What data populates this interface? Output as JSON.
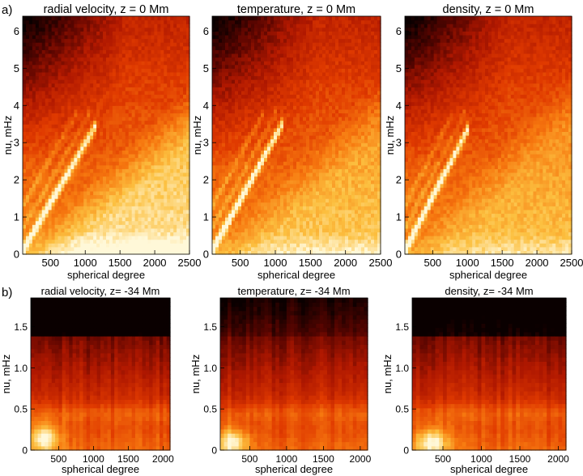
{
  "figure": {
    "row_labels": [
      "a)",
      "b)"
    ]
  },
  "chart_data": [
    {
      "type": "heatmap",
      "row": 0,
      "col": 0,
      "title": "radial velocity, z = 0 Mm",
      "xlabel": "spherical degree",
      "ylabel": "nu, mHz",
      "xlim": [
        100,
        2500
      ],
      "ylim": [
        0,
        6.4
      ],
      "xticks": [
        500,
        1000,
        1500,
        2000,
        2500
      ],
      "yticks": [
        0,
        1,
        2,
        3,
        4,
        5,
        6
      ],
      "ridge_slope": 0.0032,
      "bright_floor": 1.0,
      "colormap": [
        "#0a0000",
        "#5a0500",
        "#b01800",
        "#e03a00",
        "#f77a10",
        "#fcc040",
        "#fff8d8"
      ]
    },
    {
      "type": "heatmap",
      "row": 0,
      "col": 1,
      "title": "temperature, z = 0 Mm",
      "xlabel": "spherical degree",
      "ylabel": "nu, mHz",
      "xlim": [
        100,
        2500
      ],
      "ylim": [
        0,
        6.4
      ],
      "xticks": [
        500,
        1000,
        1500,
        2000,
        2500
      ],
      "yticks": [
        0,
        1,
        2,
        3,
        4,
        5,
        6
      ],
      "ridge_slope": 0.0034,
      "bright_floor": 0.7,
      "colormap": [
        "#0a0000",
        "#5a0500",
        "#b01800",
        "#e03a00",
        "#f77a10",
        "#fcc040",
        "#fff8d8"
      ]
    },
    {
      "type": "heatmap",
      "row": 0,
      "col": 2,
      "title": "density, z = 0 Mm",
      "xlabel": "spherical degree",
      "ylabel": "nu, mHz",
      "xlim": [
        100,
        2500
      ],
      "ylim": [
        0,
        6.4
      ],
      "xticks": [
        500,
        1000,
        1500,
        2000,
        2500
      ],
      "yticks": [
        0,
        1,
        2,
        3,
        4,
        5,
        6
      ],
      "ridge_slope": 0.0036,
      "bright_floor": 0.6,
      "colormap": [
        "#0a0000",
        "#5a0500",
        "#b01800",
        "#e03a00",
        "#f77a10",
        "#fcc040",
        "#fff8d8"
      ]
    },
    {
      "type": "heatmap",
      "row": 1,
      "col": 0,
      "title": "radial velocity, z= -34 Mm",
      "xlabel": "spherical degree",
      "ylabel": "nu, mHz",
      "xlim": [
        100,
        2100
      ],
      "ylim": [
        0,
        1.85
      ],
      "xticks": [
        500,
        1000,
        1500,
        2000
      ],
      "yticks": [
        0,
        0.5,
        1.0,
        1.5
      ],
      "ytick_labels": [
        "0",
        "0.5",
        "1.0",
        "1.5"
      ],
      "blob_center": [
        300,
        0.15
      ],
      "darkness_top": 0.25,
      "colormap": [
        "#0a0000",
        "#5a0500",
        "#b01800",
        "#e03a00",
        "#f77a10",
        "#fcc040",
        "#fff8d8"
      ]
    },
    {
      "type": "heatmap",
      "row": 1,
      "col": 1,
      "title": "temperature, z= -34 Mm",
      "xlabel": "spherical degree",
      "ylabel": "nu, mHz",
      "xlim": [
        100,
        2100
      ],
      "ylim": [
        0,
        1.85
      ],
      "xticks": [
        500,
        1000,
        1500,
        2000
      ],
      "yticks": [
        0,
        0.5,
        1.0,
        1.5
      ],
      "ytick_labels": [
        "0",
        "0.5",
        "1.0",
        "1.5"
      ],
      "blob_center": [
        250,
        0.1
      ],
      "darkness_top": 0.05,
      "colormap": [
        "#0a0000",
        "#5a0500",
        "#b01800",
        "#e03a00",
        "#f77a10",
        "#fcc040",
        "#fff8d8"
      ]
    },
    {
      "type": "heatmap",
      "row": 1,
      "col": 2,
      "title": "density, z= -34 Mm",
      "xlabel": "spherical degree",
      "ylabel": "nu, mHz",
      "xlim": [
        100,
        2100
      ],
      "ylim": [
        0,
        1.85
      ],
      "xticks": [
        500,
        1000,
        1500,
        2000
      ],
      "yticks": [
        0,
        0.5,
        1.0,
        1.5
      ],
      "ytick_labels": [
        "0",
        "0.5",
        "1.0",
        "1.5"
      ],
      "blob_center": [
        350,
        0.1
      ],
      "darkness_top": 0.2,
      "colormap": [
        "#0a0000",
        "#5a0500",
        "#b01800",
        "#e03a00",
        "#f77a10",
        "#fcc040",
        "#fff8d8"
      ]
    }
  ]
}
